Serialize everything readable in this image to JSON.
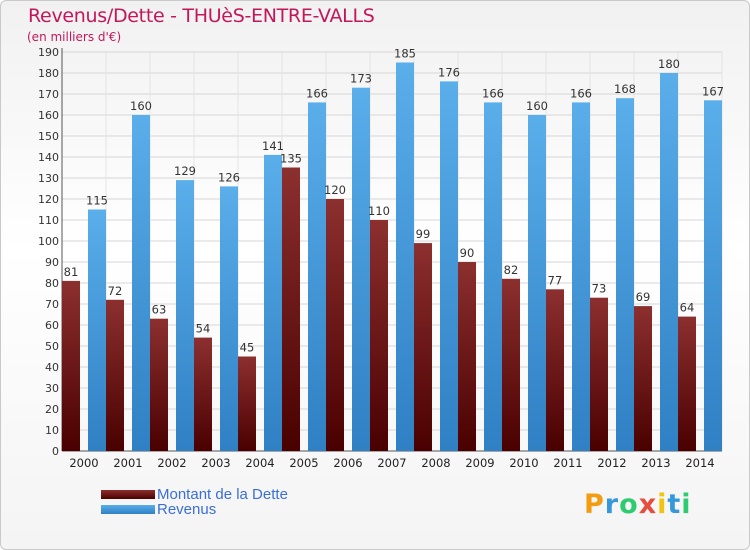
{
  "header": {
    "title": "Revenus/Dette - THUèS-ENTRE-VALLS",
    "subtitle": "(en milliers d'€)"
  },
  "logo": {
    "letters": [
      {
        "char": "P",
        "color": "#f39c12"
      },
      {
        "char": "r",
        "color": "#3498db"
      },
      {
        "char": "o",
        "color": "#2ecc71"
      },
      {
        "char": "x",
        "color": "#e74c3c"
      },
      {
        "char": "i",
        "color": "#f1c40f"
      },
      {
        "char": "t",
        "color": "#3498db"
      },
      {
        "char": "i",
        "color": "#2ecc71"
      }
    ]
  },
  "chart_data": {
    "type": "bar",
    "categories": [
      "2000",
      "2001",
      "2002",
      "2003",
      "2004",
      "2005",
      "2006",
      "2007",
      "2008",
      "2009",
      "2010",
      "2011",
      "2012",
      "2013",
      "2014"
    ],
    "series": [
      {
        "name": "Montant de la Dette",
        "color": "#6b1414",
        "values": [
          81,
          72,
          63,
          54,
          45,
          135,
          120,
          110,
          99,
          90,
          82,
          77,
          73,
          69,
          64
        ]
      },
      {
        "name": "Revenus",
        "color": "#4fa3e3",
        "values": [
          115,
          160,
          129,
          126,
          141,
          166,
          173,
          185,
          176,
          166,
          160,
          166,
          168,
          180,
          167
        ]
      }
    ],
    "ylim": [
      0,
      190
    ],
    "ytick_step": 10,
    "grid": true,
    "legend_position": "bottom-left"
  }
}
